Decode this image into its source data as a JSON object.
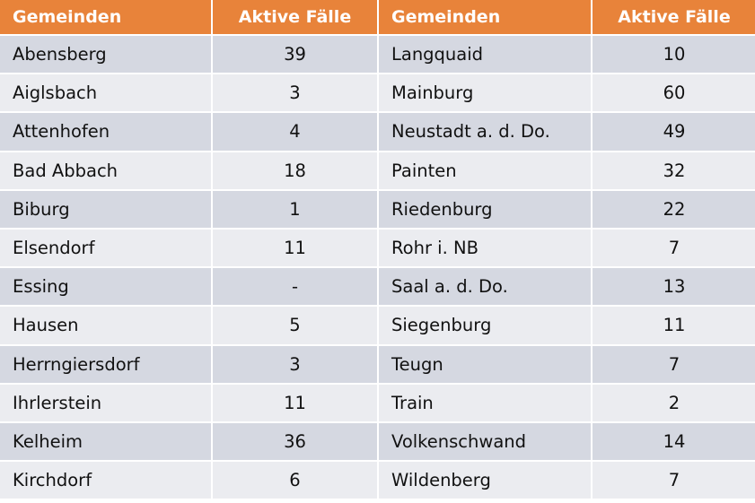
{
  "headers": [
    "Gemeinden",
    "Aktive Fälle",
    "Gemeinden",
    "Aktive Fälle"
  ],
  "colors": {
    "header": "#E8833A",
    "row_dark": "#D5D8E1",
    "row_light": "#EBECF0"
  },
  "rows": [
    [
      "Abensberg",
      "39",
      "Langquaid",
      "10"
    ],
    [
      "Aiglsbach",
      "3",
      "Mainburg",
      "60"
    ],
    [
      "Attenhofen",
      "4",
      "Neustadt a. d. Do.",
      "49"
    ],
    [
      "Bad Abbach",
      "18",
      "Painten",
      "32"
    ],
    [
      "Biburg",
      "1",
      "Riedenburg",
      "22"
    ],
    [
      "Elsendorf",
      "11",
      "Rohr i. NB",
      "7"
    ],
    [
      "Essing",
      "-",
      "Saal a. d. Do.",
      "13"
    ],
    [
      "Hausen",
      "5",
      "Siegenburg",
      "11"
    ],
    [
      "Herrngiersdorf",
      "3",
      "Teugn",
      "7"
    ],
    [
      "Ihrlerstein",
      "11",
      "Train",
      "2"
    ],
    [
      "Kelheim",
      "36",
      "Volkenschwand",
      "14"
    ],
    [
      "Kirchdorf",
      "6",
      "Wildenberg",
      "7"
    ]
  ]
}
